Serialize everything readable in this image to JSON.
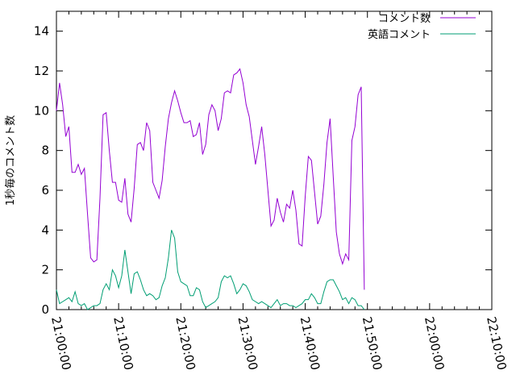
{
  "chart_data": {
    "type": "line",
    "title": "",
    "xlabel": "",
    "ylabel": "1秒毎のコメント数",
    "xlim": [
      "21:00:00",
      "22:10:00"
    ],
    "ylim": [
      0,
      15
    ],
    "y_ticks": [
      "0",
      "2",
      "4",
      "6",
      "8",
      "10",
      "12",
      "14"
    ],
    "x_ticks": [
      "21:00:00",
      "21:10:00",
      "21:20:00",
      "21:30:00",
      "21:40:00",
      "21:50:00",
      "22:00:00",
      "22:10:00"
    ],
    "grid": false,
    "legend_position": "top-right",
    "series": [
      {
        "name": "コメント数",
        "color": "#9400d3",
        "points": [
          [
            "21:00:00",
            10.0
          ],
          [
            "21:00:30",
            11.4
          ],
          [
            "21:01:00",
            10.3
          ],
          [
            "21:01:30",
            8.7
          ],
          [
            "21:02:00",
            9.2
          ],
          [
            "21:02:30",
            6.9
          ],
          [
            "21:03:00",
            6.9
          ],
          [
            "21:03:30",
            7.3
          ],
          [
            "21:04:00",
            6.8
          ],
          [
            "21:04:30",
            7.1
          ],
          [
            "21:05:00",
            4.8
          ],
          [
            "21:05:30",
            2.6
          ],
          [
            "21:06:00",
            2.4
          ],
          [
            "21:06:30",
            2.5
          ],
          [
            "21:07:00",
            5.6
          ],
          [
            "21:07:30",
            9.8
          ],
          [
            "21:08:00",
            9.9
          ],
          [
            "21:08:30",
            8.0
          ],
          [
            "21:09:00",
            6.4
          ],
          [
            "21:09:30",
            6.4
          ],
          [
            "21:10:00",
            5.5
          ],
          [
            "21:10:30",
            5.4
          ],
          [
            "21:11:00",
            6.6
          ],
          [
            "21:11:30",
            4.8
          ],
          [
            "21:12:00",
            4.4
          ],
          [
            "21:12:30",
            6.1
          ],
          [
            "21:13:00",
            8.3
          ],
          [
            "21:13:30",
            8.4
          ],
          [
            "21:14:00",
            8.0
          ],
          [
            "21:14:30",
            9.4
          ],
          [
            "21:15:00",
            9.0
          ],
          [
            "21:15:30",
            6.4
          ],
          [
            "21:16:00",
            6.0
          ],
          [
            "21:16:30",
            5.6
          ],
          [
            "21:17:00",
            6.5
          ],
          [
            "21:17:30",
            8.2
          ],
          [
            "21:18:00",
            9.6
          ],
          [
            "21:18:30",
            10.4
          ],
          [
            "21:19:00",
            11.0
          ],
          [
            "21:19:30",
            10.5
          ],
          [
            "21:20:00",
            9.9
          ],
          [
            "21:20:30",
            9.4
          ],
          [
            "21:21:00",
            9.4
          ],
          [
            "21:21:30",
            9.5
          ],
          [
            "21:22:00",
            8.7
          ],
          [
            "21:22:30",
            8.8
          ],
          [
            "21:23:00",
            9.4
          ],
          [
            "21:23:30",
            7.8
          ],
          [
            "21:24:00",
            8.3
          ],
          [
            "21:24:30",
            9.8
          ],
          [
            "21:25:00",
            10.3
          ],
          [
            "21:25:30",
            10.0
          ],
          [
            "21:26:00",
            9.0
          ],
          [
            "21:26:30",
            9.6
          ],
          [
            "21:27:00",
            10.9
          ],
          [
            "21:27:30",
            11.0
          ],
          [
            "21:28:00",
            10.9
          ],
          [
            "21:28:30",
            11.8
          ],
          [
            "21:29:00",
            11.9
          ],
          [
            "21:29:30",
            12.1
          ],
          [
            "21:30:00",
            11.4
          ],
          [
            "21:30:30",
            10.3
          ],
          [
            "21:31:00",
            9.7
          ],
          [
            "21:31:30",
            8.5
          ],
          [
            "21:32:00",
            7.3
          ],
          [
            "21:32:30",
            8.2
          ],
          [
            "21:33:00",
            9.2
          ],
          [
            "21:33:30",
            7.8
          ],
          [
            "21:34:00",
            6.0
          ],
          [
            "21:34:30",
            4.2
          ],
          [
            "21:35:00",
            4.5
          ],
          [
            "21:35:30",
            5.6
          ],
          [
            "21:36:00",
            4.9
          ],
          [
            "21:36:30",
            4.4
          ],
          [
            "21:37:00",
            5.3
          ],
          [
            "21:37:30",
            5.1
          ],
          [
            "21:38:00",
            6.0
          ],
          [
            "21:38:30",
            5.0
          ],
          [
            "21:39:00",
            3.3
          ],
          [
            "21:39:30",
            3.2
          ],
          [
            "21:40:00",
            5.7
          ],
          [
            "21:40:30",
            7.7
          ],
          [
            "21:41:00",
            7.5
          ],
          [
            "21:41:30",
            5.9
          ],
          [
            "21:42:00",
            4.3
          ],
          [
            "21:42:30",
            4.7
          ],
          [
            "21:43:00",
            6.3
          ],
          [
            "21:43:30",
            8.4
          ],
          [
            "21:44:00",
            9.6
          ],
          [
            "21:44:30",
            6.7
          ],
          [
            "21:45:00",
            3.9
          ],
          [
            "21:45:30",
            2.8
          ],
          [
            "21:46:00",
            2.3
          ],
          [
            "21:46:30",
            2.8
          ],
          [
            "21:47:00",
            2.5
          ],
          [
            "21:47:30",
            8.5
          ],
          [
            "21:48:00",
            9.2
          ],
          [
            "21:48:30",
            10.8
          ],
          [
            "21:49:00",
            11.2
          ],
          [
            "21:49:30",
            1.0
          ]
        ]
      },
      {
        "name": "英語コメント",
        "color": "#009e73",
        "points": [
          [
            "21:00:00",
            1.0
          ],
          [
            "21:00:30",
            0.3
          ],
          [
            "21:01:00",
            0.4
          ],
          [
            "21:01:30",
            0.5
          ],
          [
            "21:02:00",
            0.6
          ],
          [
            "21:02:30",
            0.4
          ],
          [
            "21:03:00",
            0.9
          ],
          [
            "21:03:30",
            0.3
          ],
          [
            "21:04:00",
            0.2
          ],
          [
            "21:04:30",
            0.3
          ],
          [
            "21:05:00",
            0.0
          ],
          [
            "21:05:30",
            0.1
          ],
          [
            "21:06:00",
            0.2
          ],
          [
            "21:06:30",
            0.2
          ],
          [
            "21:07:00",
            0.3
          ],
          [
            "21:07:30",
            1.0
          ],
          [
            "21:08:00",
            1.3
          ],
          [
            "21:08:30",
            1.0
          ],
          [
            "21:09:00",
            2.0
          ],
          [
            "21:09:30",
            1.7
          ],
          [
            "21:10:00",
            1.1
          ],
          [
            "21:10:30",
            1.7
          ],
          [
            "21:11:00",
            3.0
          ],
          [
            "21:11:30",
            1.9
          ],
          [
            "21:12:00",
            0.8
          ],
          [
            "21:12:30",
            1.8
          ],
          [
            "21:13:00",
            1.9
          ],
          [
            "21:13:30",
            1.5
          ],
          [
            "21:14:00",
            1.0
          ],
          [
            "21:14:30",
            0.7
          ],
          [
            "21:15:00",
            0.8
          ],
          [
            "21:15:30",
            0.7
          ],
          [
            "21:16:00",
            0.5
          ],
          [
            "21:16:30",
            0.6
          ],
          [
            "21:17:00",
            1.2
          ],
          [
            "21:17:30",
            1.6
          ],
          [
            "21:18:00",
            2.6
          ],
          [
            "21:18:30",
            4.0
          ],
          [
            "21:19:00",
            3.6
          ],
          [
            "21:19:30",
            1.9
          ],
          [
            "21:20:00",
            1.4
          ],
          [
            "21:20:30",
            1.3
          ],
          [
            "21:21:00",
            1.2
          ],
          [
            "21:21:30",
            0.7
          ],
          [
            "21:22:00",
            0.7
          ],
          [
            "21:22:30",
            1.1
          ],
          [
            "21:23:00",
            1.0
          ],
          [
            "21:23:30",
            0.4
          ],
          [
            "21:24:00",
            0.1
          ],
          [
            "21:24:30",
            0.2
          ],
          [
            "21:25:00",
            0.3
          ],
          [
            "21:25:30",
            0.4
          ],
          [
            "21:26:00",
            0.6
          ],
          [
            "21:26:30",
            1.4
          ],
          [
            "21:27:00",
            1.7
          ],
          [
            "21:27:30",
            1.6
          ],
          [
            "21:28:00",
            1.7
          ],
          [
            "21:28:30",
            1.3
          ],
          [
            "21:29:00",
            0.8
          ],
          [
            "21:29:30",
            1.0
          ],
          [
            "21:30:00",
            1.3
          ],
          [
            "21:30:30",
            1.2
          ],
          [
            "21:31:00",
            0.9
          ],
          [
            "21:31:30",
            0.5
          ],
          [
            "21:32:00",
            0.4
          ],
          [
            "21:32:30",
            0.3
          ],
          [
            "21:33:00",
            0.4
          ],
          [
            "21:33:30",
            0.3
          ],
          [
            "21:34:00",
            0.2
          ],
          [
            "21:34:30",
            0.1
          ],
          [
            "21:35:00",
            0.3
          ],
          [
            "21:35:30",
            0.5
          ],
          [
            "21:36:00",
            0.2
          ],
          [
            "21:36:30",
            0.3
          ],
          [
            "21:37:00",
            0.3
          ],
          [
            "21:37:30",
            0.2
          ],
          [
            "21:38:00",
            0.2
          ],
          [
            "21:38:30",
            0.1
          ],
          [
            "21:39:00",
            0.2
          ],
          [
            "21:39:30",
            0.3
          ],
          [
            "21:40:00",
            0.5
          ],
          [
            "21:40:30",
            0.5
          ],
          [
            "21:41:00",
            0.8
          ],
          [
            "21:41:30",
            0.6
          ],
          [
            "21:42:00",
            0.3
          ],
          [
            "21:42:30",
            0.3
          ],
          [
            "21:43:00",
            0.9
          ],
          [
            "21:43:30",
            1.4
          ],
          [
            "21:44:00",
            1.5
          ],
          [
            "21:44:30",
            1.5
          ],
          [
            "21:45:00",
            1.2
          ],
          [
            "21:45:30",
            0.9
          ],
          [
            "21:46:00",
            0.5
          ],
          [
            "21:46:30",
            0.6
          ],
          [
            "21:47:00",
            0.3
          ],
          [
            "21:47:30",
            0.6
          ],
          [
            "21:48:00",
            0.5
          ],
          [
            "21:48:30",
            0.2
          ],
          [
            "21:49:00",
            0.2
          ],
          [
            "21:49:30",
            0.0
          ]
        ]
      }
    ]
  }
}
